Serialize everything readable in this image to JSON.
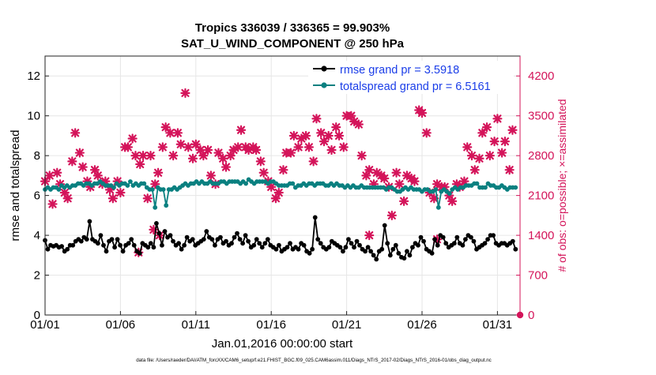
{
  "chart_data": {
    "type": "line",
    "title": "Tropics 336039 / 336365 = 99.903%",
    "subtitle": "SAT_U_WIND_COMPONENT @ 250 hPa",
    "xlabel": "Jan.01,2016 00:00:00 start",
    "ylabel": "rmse and totalspread",
    "y2label": "# of obs: o=possible; ×=assimilated",
    "footnote": "data file: /Users/raeder/DAI/ATM_forcXX/CAM6_setup/f.e21.FHIST_BGC.f09_025.CAM6assim.011/Diags_NTrS_2017-02/Diags_NTrS_2016-01/obs_diag_output.nc",
    "xlim": [
      0,
      31.5
    ],
    "ylim": [
      0,
      13
    ],
    "y2lim": [
      0,
      4550
    ],
    "x_ticks": [
      0,
      5,
      10,
      15,
      20,
      25,
      30
    ],
    "x_tick_labels": [
      "01/01",
      "01/06",
      "01/11",
      "01/16",
      "01/21",
      "01/26",
      "01/31"
    ],
    "y_ticks": [
      0,
      2,
      4,
      6,
      8,
      10,
      12
    ],
    "y2_ticks": [
      0,
      700,
      1400,
      2100,
      2800,
      3500,
      4200
    ],
    "grid": true,
    "legend_position": "top-right",
    "colors": {
      "rmse": "#000000",
      "totalspread": "#0a8080",
      "obs": "#d4145a",
      "legend_text": "#1a3de8"
    },
    "series": [
      {
        "name": "rmse grand pr = 3.5918",
        "values": [
          3.75,
          3.3,
          3.5,
          3.45,
          3.5,
          3.4,
          3.45,
          3.2,
          3.3,
          3.5,
          3.5,
          3.7,
          3.8,
          3.7,
          3.9,
          3.8,
          4.7,
          3.8,
          3.7,
          3.6,
          4.0,
          3.5,
          3.2,
          3.7,
          3.8,
          3.4,
          3.8,
          3.5,
          3.2,
          3.5,
          3.6,
          3.8,
          3.5,
          3.2,
          3.1,
          3.6,
          3.5,
          3.4,
          3.6,
          3.4,
          4.6,
          4.1,
          3.5,
          4.2,
          3.9,
          4.0,
          3.7,
          3.5,
          3.6,
          3.3,
          3.5,
          3.9,
          3.7,
          3.8,
          3.5,
          3.6,
          3.7,
          3.8,
          4.2,
          3.9,
          3.8,
          3.5,
          3.8,
          3.9,
          3.6,
          3.7,
          3.5,
          3.6,
          3.9,
          4.1,
          3.8,
          3.6,
          4.0,
          3.7,
          3.4,
          3.5,
          3.8,
          3.6,
          3.4,
          3.6,
          3.8,
          3.5,
          3.4,
          3.3,
          3.5,
          3.2,
          3.3,
          3.4,
          3.6,
          3.3,
          3.4,
          3.3,
          3.6,
          3.5,
          3.2,
          3.1,
          3.3,
          4.9,
          3.8,
          3.6,
          3.4,
          3.3,
          3.4,
          3.7,
          3.6,
          3.5,
          3.4,
          3.2,
          3.4,
          3.8,
          3.6,
          3.4,
          3.7,
          3.5,
          3.3,
          3.2,
          3.4,
          3.2,
          3.0,
          2.8,
          3.2,
          3.3,
          4.5,
          3.6,
          3.0,
          3.3,
          3.5,
          3.1,
          2.9,
          2.85,
          3.2,
          3.0,
          3.4,
          3.6,
          3.5,
          3.9,
          3.7,
          3.3,
          3.2,
          3.1,
          3.8,
          3.5,
          4.0,
          3.9,
          3.6,
          3.4,
          3.5,
          3.6,
          3.9,
          3.6,
          3.5,
          3.8,
          4.0,
          3.9,
          3.7,
          3.3,
          3.4,
          3.5,
          3.6,
          3.8,
          4.0,
          4.0,
          3.6,
          3.5,
          3.6,
          3.6,
          3.5,
          3.6,
          3.7,
          3.3
        ]
      },
      {
        "name": "totalspread grand pr = 6.5161",
        "values": [
          6.3,
          6.4,
          6.3,
          6.4,
          6.4,
          6.3,
          6.5,
          6.4,
          6.5,
          6.4,
          6.5,
          6.5,
          6.6,
          6.6,
          6.5,
          6.6,
          6.6,
          6.5,
          6.6,
          6.6,
          6.7,
          6.6,
          6.5,
          6.5,
          6.5,
          6.4,
          6.6,
          6.5,
          6.6,
          6.6,
          6.5,
          6.7,
          6.5,
          6.6,
          6.5,
          6.6,
          6.6,
          6.4,
          6.3,
          6.3,
          5.4,
          6.4,
          6.3,
          6.3,
          5.5,
          6.3,
          6.3,
          6.4,
          6.3,
          6.4,
          6.5,
          6.6,
          6.5,
          6.6,
          6.6,
          6.7,
          6.6,
          6.7,
          6.6,
          6.6,
          6.7,
          6.6,
          6.6,
          6.6,
          6.7,
          6.7,
          6.6,
          6.7,
          6.7,
          6.7,
          6.7,
          6.6,
          6.7,
          6.6,
          6.8,
          6.7,
          6.6,
          6.7,
          6.7,
          6.7,
          6.7,
          6.6,
          6.7,
          6.7,
          6.6,
          6.5,
          6.5,
          6.5,
          6.5,
          6.6,
          6.6,
          6.4,
          6.5,
          6.5,
          6.6,
          6.5,
          6.6,
          6.6,
          6.5,
          6.6,
          6.6,
          6.6,
          6.5,
          6.5,
          6.6,
          6.5,
          6.6,
          6.5,
          6.5,
          6.4,
          6.5,
          6.4,
          6.5,
          6.4,
          6.4,
          6.5,
          6.4,
          6.4,
          6.4,
          6.4,
          6.4,
          6.4,
          6.4,
          6.4,
          6.3,
          6.4,
          6.4,
          6.3,
          6.2,
          6.2,
          6.3,
          6.4,
          6.3,
          6.4,
          6.3,
          6.3,
          6.3,
          6.2,
          6.3,
          6.3,
          6.2,
          6.2,
          6.3,
          5.4,
          6.2,
          6.3,
          6.2,
          6.1,
          6.3,
          6.4,
          6.3,
          6.4,
          6.4,
          6.5,
          6.5,
          6.5,
          6.6,
          6.6,
          6.4,
          6.4,
          6.4,
          6.6,
          6.5,
          6.5,
          6.4,
          6.4,
          6.5,
          6.4,
          6.3,
          6.4,
          6.4,
          6.4
        ]
      }
    ],
    "obs_assimilated": [
      {
        "x": 0,
        "y": 2350
      },
      {
        "x": 0.3,
        "y": 2450
      },
      {
        "x": 0.5,
        "y": 1950
      },
      {
        "x": 0.8,
        "y": 2500
      },
      {
        "x": 1.0,
        "y": 2300
      },
      {
        "x": 1.3,
        "y": 2150
      },
      {
        "x": 1.5,
        "y": 2050
      },
      {
        "x": 1.8,
        "y": 2700
      },
      {
        "x": 2.0,
        "y": 3200
      },
      {
        "x": 2.3,
        "y": 2850
      },
      {
        "x": 2.5,
        "y": 2600
      },
      {
        "x": 2.8,
        "y": 2350
      },
      {
        "x": 3.0,
        "y": 2250
      },
      {
        "x": 3.3,
        "y": 2550
      },
      {
        "x": 3.5,
        "y": 2450
      },
      {
        "x": 3.8,
        "y": 2300
      },
      {
        "x": 4.0,
        "y": 2350
      },
      {
        "x": 4.3,
        "y": 2200
      },
      {
        "x": 4.5,
        "y": 2050
      },
      {
        "x": 4.8,
        "y": 2350
      },
      {
        "x": 5.0,
        "y": 2150
      },
      {
        "x": 5.3,
        "y": 2950
      },
      {
        "x": 5.5,
        "y": 2950
      },
      {
        "x": 5.8,
        "y": 3100
      },
      {
        "x": 6.0,
        "y": 2800
      },
      {
        "x": 6.3,
        "y": 2650
      },
      {
        "x": 6.5,
        "y": 2800
      },
      {
        "x": 6.8,
        "y": 2050
      },
      {
        "x": 7.0,
        "y": 2800
      },
      {
        "x": 7.3,
        "y": 2300
      },
      {
        "x": 7.5,
        "y": 2500
      },
      {
        "x": 7.8,
        "y": 2950
      },
      {
        "x": 8.0,
        "y": 3300
      },
      {
        "x": 8.3,
        "y": 3200
      },
      {
        "x": 8.5,
        "y": 2800
      },
      {
        "x": 8.8,
        "y": 3200
      },
      {
        "x": 9.0,
        "y": 3000
      },
      {
        "x": 9.3,
        "y": 3900
      },
      {
        "x": 9.5,
        "y": 2950
      },
      {
        "x": 9.8,
        "y": 2750
      },
      {
        "x": 10.0,
        "y": 3000
      },
      {
        "x": 10.3,
        "y": 2900
      },
      {
        "x": 10.5,
        "y": 2800
      },
      {
        "x": 10.8,
        "y": 2900
      },
      {
        "x": 11.0,
        "y": 2450
      },
      {
        "x": 11.3,
        "y": 2300
      },
      {
        "x": 11.5,
        "y": 2850
      },
      {
        "x": 11.8,
        "y": 2750
      },
      {
        "x": 12.0,
        "y": 2600
      },
      {
        "x": 12.3,
        "y": 2800
      },
      {
        "x": 12.5,
        "y": 2900
      },
      {
        "x": 12.8,
        "y": 2950
      },
      {
        "x": 13.0,
        "y": 3250
      },
      {
        "x": 13.3,
        "y": 2950
      },
      {
        "x": 13.5,
        "y": 2900
      },
      {
        "x": 13.8,
        "y": 2950
      },
      {
        "x": 14.0,
        "y": 2900
      },
      {
        "x": 14.3,
        "y": 2700
      },
      {
        "x": 14.5,
        "y": 2500
      },
      {
        "x": 14.8,
        "y": 2350
      },
      {
        "x": 15.0,
        "y": 2250
      },
      {
        "x": 15.3,
        "y": 2050
      },
      {
        "x": 15.5,
        "y": 2150
      },
      {
        "x": 15.8,
        "y": 2550
      },
      {
        "x": 16.0,
        "y": 2850
      },
      {
        "x": 16.3,
        "y": 2850
      },
      {
        "x": 16.5,
        "y": 3150
      },
      {
        "x": 16.8,
        "y": 2950
      },
      {
        "x": 17.0,
        "y": 3100
      },
      {
        "x": 17.3,
        "y": 3150
      },
      {
        "x": 17.5,
        "y": 2950
      },
      {
        "x": 17.8,
        "y": 2700
      },
      {
        "x": 18.0,
        "y": 3450
      },
      {
        "x": 18.3,
        "y": 3200
      },
      {
        "x": 18.5,
        "y": 3050
      },
      {
        "x": 18.8,
        "y": 3150
      },
      {
        "x": 19.0,
        "y": 2900
      },
      {
        "x": 19.3,
        "y": 3300
      },
      {
        "x": 19.5,
        "y": 3150
      },
      {
        "x": 19.8,
        "y": 2950
      },
      {
        "x": 20.0,
        "y": 3500
      },
      {
        "x": 20.3,
        "y": 3500
      },
      {
        "x": 20.5,
        "y": 3400
      },
      {
        "x": 20.8,
        "y": 3350
      },
      {
        "x": 21.0,
        "y": 2800
      },
      {
        "x": 21.3,
        "y": 2450
      },
      {
        "x": 21.5,
        "y": 2550
      },
      {
        "x": 21.8,
        "y": 2300
      },
      {
        "x": 22.0,
        "y": 2500
      },
      {
        "x": 22.3,
        "y": 2450
      },
      {
        "x": 22.5,
        "y": 2400
      },
      {
        "x": 22.8,
        "y": 2250
      },
      {
        "x": 23.0,
        "y": 1750
      },
      {
        "x": 23.3,
        "y": 2500
      },
      {
        "x": 23.5,
        "y": 2300
      },
      {
        "x": 23.8,
        "y": 2000
      },
      {
        "x": 24.0,
        "y": 2450
      },
      {
        "x": 24.3,
        "y": 2400
      },
      {
        "x": 24.5,
        "y": 2350
      },
      {
        "x": 24.8,
        "y": 3600
      },
      {
        "x": 25.0,
        "y": 3550
      },
      {
        "x": 25.3,
        "y": 3200
      },
      {
        "x": 25.5,
        "y": 2150
      },
      {
        "x": 25.8,
        "y": 2050
      },
      {
        "x": 26.0,
        "y": 2300
      },
      {
        "x": 26.3,
        "y": 2250
      },
      {
        "x": 26.5,
        "y": 2250
      },
      {
        "x": 26.8,
        "y": 2100
      },
      {
        "x": 27.0,
        "y": 2000
      },
      {
        "x": 27.3,
        "y": 2300
      },
      {
        "x": 27.5,
        "y": 2250
      },
      {
        "x": 27.8,
        "y": 2350
      },
      {
        "x": 28.0,
        "y": 2950
      },
      {
        "x": 28.3,
        "y": 2800
      },
      {
        "x": 28.5,
        "y": 2550
      },
      {
        "x": 28.8,
        "y": 2750
      },
      {
        "x": 29.0,
        "y": 3200
      },
      {
        "x": 29.3,
        "y": 3300
      },
      {
        "x": 29.5,
        "y": 2800
      },
      {
        "x": 29.8,
        "y": 3050
      },
      {
        "x": 30.0,
        "y": 3450
      },
      {
        "x": 30.3,
        "y": 2850
      },
      {
        "x": 30.5,
        "y": 3050
      },
      {
        "x": 30.8,
        "y": 2550
      },
      {
        "x": 31.0,
        "y": 3250
      },
      {
        "x": 26.0,
        "y": 1330
      },
      {
        "x": 21.5,
        "y": 1400
      }
    ],
    "obs_assimilated_outliers": [
      {
        "x": 6.2,
        "y": 1100
      },
      {
        "x": 7.2,
        "y": 1500
      },
      {
        "x": 7.6,
        "y": 1400
      }
    ],
    "obs_possible_zero": [
      {
        "x": 31.5,
        "y": 0
      }
    ]
  }
}
